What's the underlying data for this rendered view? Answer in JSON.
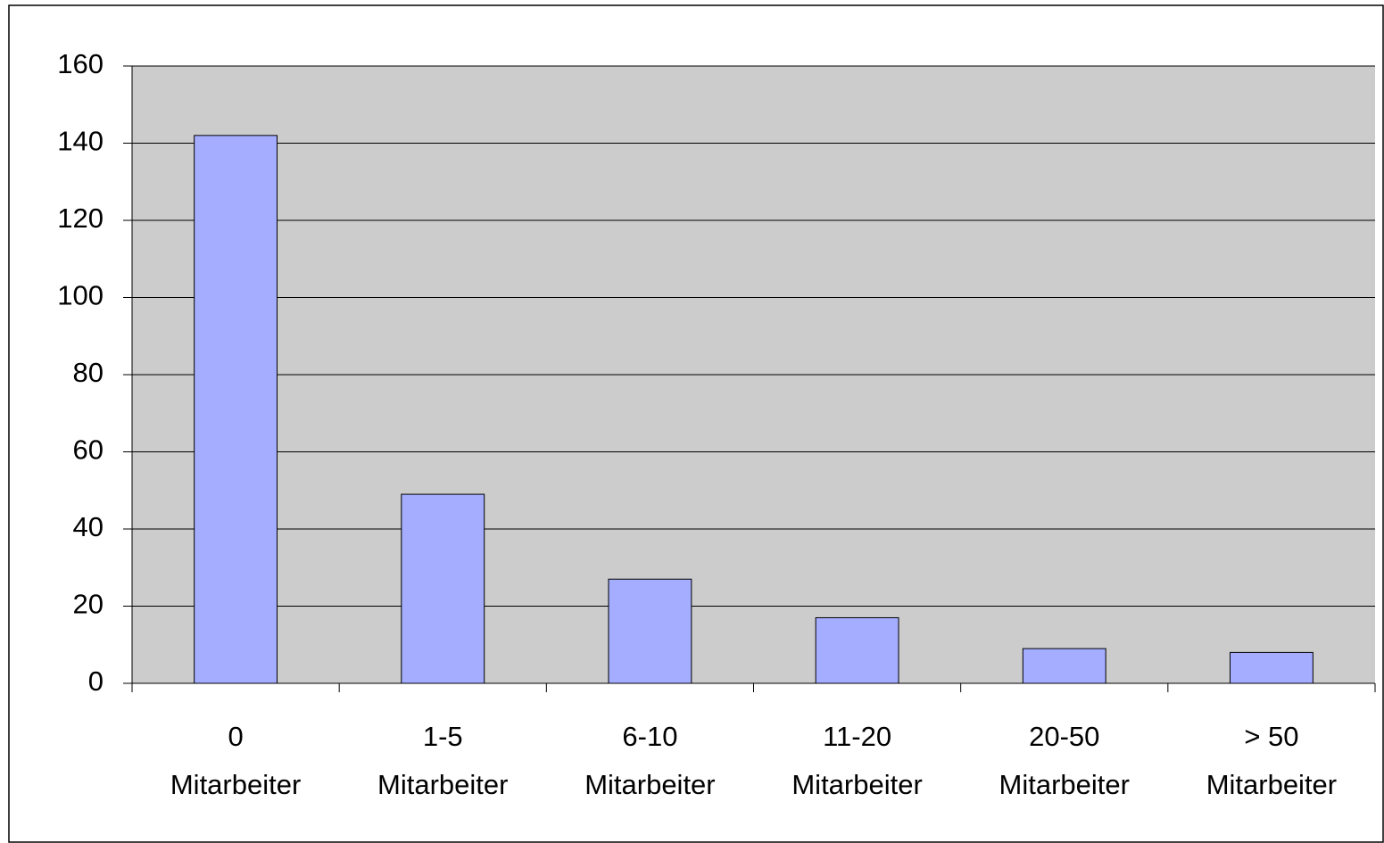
{
  "chart_data": {
    "type": "bar",
    "categories": [
      "0 Mitarbeiter",
      "1-5 Mitarbeiter",
      "6-10 Mitarbeiter",
      "11-20 Mitarbeiter",
      "20-50 Mitarbeiter",
      "> 50 Mitarbeiter"
    ],
    "values": [
      142,
      49,
      27,
      17,
      9,
      8
    ],
    "color": "#a4adff",
    "ylim": [
      0,
      160
    ],
    "yticks": [
      0,
      20,
      40,
      60,
      80,
      100,
      120,
      140,
      160
    ],
    "grid": true
  }
}
